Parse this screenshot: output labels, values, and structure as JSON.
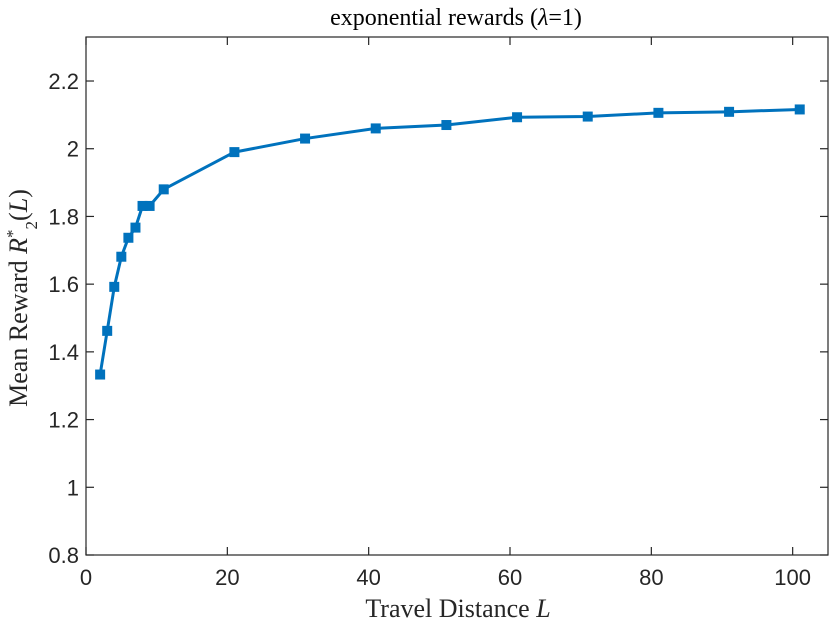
{
  "chart_data": {
    "type": "line",
    "title": "exponential rewards (λ=1)",
    "xlabel": "Travel Distance L",
    "ylabel": "Mean Reward R*2(L)",
    "xlim": [
      0,
      105
    ],
    "ylim": [
      0.8,
      2.33
    ],
    "xticks": [
      0,
      20,
      40,
      60,
      80,
      100
    ],
    "yticks": [
      0.8,
      1,
      1.2,
      1.4,
      1.6,
      1.8,
      2,
      2.2
    ],
    "xtick_labels": [
      "0",
      "20",
      "40",
      "60",
      "80",
      "100"
    ],
    "ytick_labels": [
      "0.8",
      "1",
      "1.2",
      "1.4",
      "1.6",
      "1.8",
      "2",
      "2.2"
    ],
    "grid": false,
    "legend": "none",
    "series": [
      {
        "color": "#0072BD",
        "marker": "square",
        "x": [
          2,
          3,
          4,
          5,
          6,
          7,
          8,
          9,
          11,
          21,
          31,
          41,
          51,
          61,
          71,
          81,
          91,
          101
        ],
        "y": [
          1.333,
          1.462,
          1.592,
          1.681,
          1.737,
          1.767,
          1.831,
          1.831,
          1.88,
          1.99,
          2.03,
          2.06,
          2.07,
          2.093,
          2.095,
          2.106,
          2.109,
          2.116
        ]
      }
    ]
  }
}
